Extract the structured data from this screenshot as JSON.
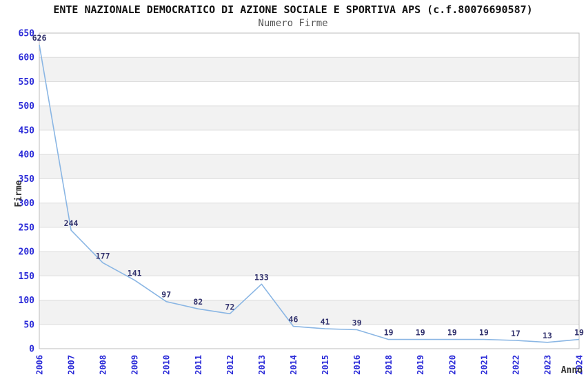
{
  "chart_data": {
    "type": "line",
    "title": "ENTE NAZIONALE DEMOCRATICO DI AZIONE SOCIALE E SPORTIVA APS (c.f.80076690587)",
    "subtitle": "Numero Firme",
    "xlabel": "Anno",
    "ylabel": "Firme",
    "categories": [
      "2006",
      "2007",
      "2008",
      "2009",
      "2010",
      "2011",
      "2012",
      "2013",
      "2014",
      "2015",
      "2016",
      "2018",
      "2019",
      "2020",
      "2021",
      "2022",
      "2023",
      "2024"
    ],
    "values": [
      626,
      244,
      177,
      141,
      97,
      82,
      72,
      133,
      46,
      41,
      39,
      19,
      19,
      19,
      19,
      17,
      13,
      19
    ],
    "ylim": [
      0,
      650
    ],
    "ytick_step": 50,
    "grid": true,
    "legend": false,
    "bands_alternating": true,
    "colors": {
      "line": "#8ab6e4",
      "tick_label": "#2a2ad8",
      "data_label": "#33336e",
      "axis_title": "#333333",
      "band": "#f2f2f2",
      "gridline": "#dcdcdc",
      "border": "#bdbdbd",
      "title": "#111111",
      "subtitle": "#555555"
    }
  }
}
